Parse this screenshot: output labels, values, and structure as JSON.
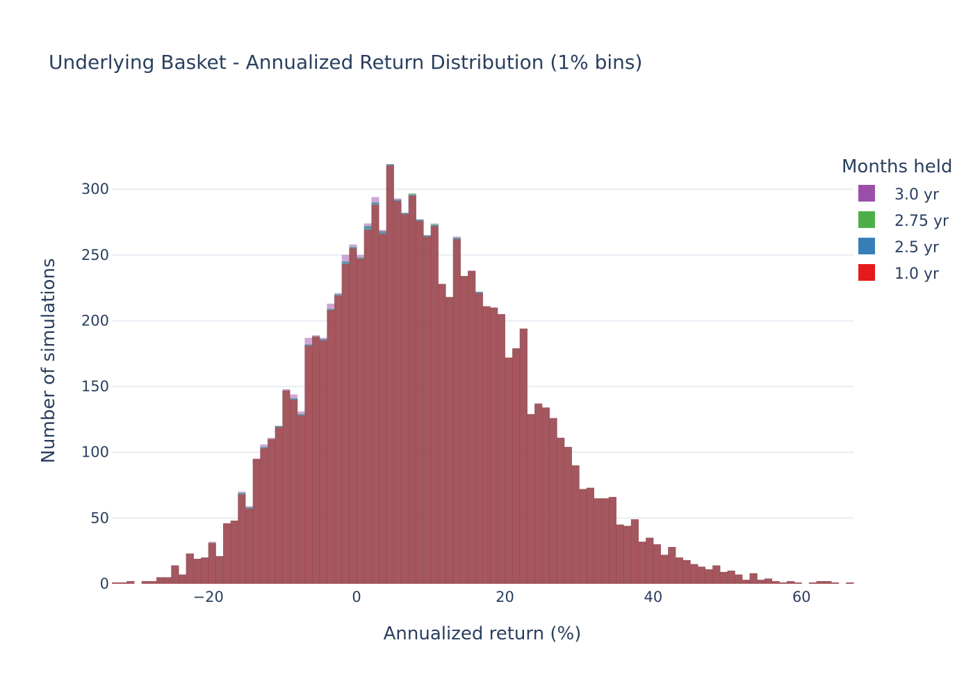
{
  "chart_data": {
    "type": "bar",
    "barmode": "overlay",
    "title": "Underlying Basket - Annualized Return Distribution (1% bins)",
    "xlabel": "Annualized return (%)",
    "ylabel": "Number of simulations",
    "xlim": [
      -33,
      67
    ],
    "ylim": [
      0,
      335
    ],
    "xticks": [
      -20,
      0,
      20,
      40,
      60
    ],
    "yticks": [
      0,
      50,
      100,
      150,
      200,
      250,
      300
    ],
    "grid": true,
    "legend": {
      "title": "Months held",
      "position": "top-right"
    },
    "bin_width": 1,
    "x": [
      -33,
      -32,
      -31,
      -30,
      -29,
      -28,
      -27,
      -26,
      -25,
      -24,
      -23,
      -22,
      -21,
      -20,
      -19,
      -18,
      -17,
      -16,
      -15,
      -14,
      -13,
      -12,
      -11,
      -10,
      -9,
      -8,
      -7,
      -6,
      -5,
      -4,
      -3,
      -2,
      -1,
      0,
      1,
      2,
      3,
      4,
      5,
      6,
      7,
      8,
      9,
      10,
      11,
      12,
      13,
      14,
      15,
      16,
      17,
      18,
      19,
      20,
      21,
      22,
      23,
      24,
      25,
      26,
      27,
      28,
      29,
      30,
      31,
      32,
      33,
      34,
      35,
      36,
      37,
      38,
      39,
      40,
      41,
      42,
      43,
      44,
      45,
      46,
      47,
      48,
      49,
      50,
      51,
      52,
      53,
      54,
      55,
      56,
      57,
      58,
      59,
      60,
      61,
      62,
      63,
      64,
      65,
      66
    ],
    "series": [
      {
        "name": "3.0 yr",
        "color": "#9b4fa8",
        "values": [
          1,
          1,
          2,
          0,
          2,
          2,
          5,
          5,
          14,
          7,
          23,
          19,
          20,
          32,
          21,
          46,
          48,
          70,
          59,
          95,
          106,
          111,
          120,
          148,
          144,
          131,
          187,
          189,
          187,
          213,
          221,
          250,
          258,
          250,
          274,
          294,
          269,
          319,
          293,
          282,
          296,
          277,
          265,
          273,
          228,
          218,
          264,
          234,
          238,
          222,
          211,
          210,
          205,
          172,
          179,
          194,
          129,
          137,
          134,
          126,
          111,
          104,
          90,
          72,
          73,
          65,
          65,
          66,
          45,
          44,
          49,
          32,
          35,
          30,
          22,
          28,
          20,
          18,
          15,
          13,
          11,
          14,
          9,
          10,
          7,
          3,
          8,
          3,
          4,
          2,
          1,
          2,
          1,
          0,
          1,
          2,
          2,
          1,
          0,
          1
        ]
      },
      {
        "name": "2.75 yr",
        "color": "#4daf4a",
        "values": [
          1,
          1,
          2,
          0,
          2,
          2,
          5,
          5,
          14,
          7,
          23,
          19,
          20,
          31,
          21,
          46,
          48,
          69,
          58,
          95,
          104,
          110,
          120,
          147,
          141,
          129,
          182,
          188,
          186,
          209,
          220,
          245,
          256,
          248,
          272,
          290,
          268,
          319,
          292,
          282,
          297,
          277,
          265,
          274,
          228,
          218,
          263,
          234,
          238,
          222,
          211,
          210,
          205,
          172,
          179,
          194,
          129,
          137,
          134,
          126,
          111,
          104,
          90,
          72,
          73,
          65,
          65,
          66,
          45,
          44,
          49,
          32,
          35,
          30,
          22,
          28,
          20,
          18,
          15,
          13,
          11,
          14,
          9,
          10,
          7,
          3,
          8,
          3,
          4,
          2,
          1,
          2,
          1,
          0,
          1,
          2,
          2,
          1,
          0,
          1
        ]
      },
      {
        "name": "2.5 yr",
        "color": "#377eb8",
        "values": [
          1,
          1,
          2,
          0,
          2,
          2,
          5,
          5,
          14,
          7,
          23,
          19,
          20,
          31,
          21,
          46,
          48,
          69,
          58,
          95,
          104,
          110,
          120,
          147,
          141,
          129,
          182,
          188,
          186,
          209,
          220,
          245,
          256,
          248,
          272,
          290,
          268,
          319,
          292,
          282,
          296,
          277,
          265,
          273,
          228,
          218,
          263,
          234,
          238,
          222,
          211,
          210,
          205,
          172,
          179,
          194,
          129,
          137,
          134,
          126,
          111,
          104,
          90,
          72,
          73,
          65,
          65,
          66,
          45,
          44,
          49,
          32,
          35,
          30,
          22,
          28,
          20,
          18,
          15,
          13,
          11,
          14,
          9,
          10,
          7,
          3,
          8,
          3,
          4,
          2,
          1,
          2,
          1,
          0,
          1,
          2,
          2,
          1,
          0,
          1
        ]
      },
      {
        "name": "1.0 yr",
        "color": "#e41a1c",
        "values": [
          1,
          1,
          2,
          0,
          2,
          2,
          5,
          5,
          14,
          7,
          23,
          19,
          20,
          31,
          21,
          46,
          48,
          68,
          57,
          95,
          103,
          110,
          119,
          147,
          140,
          128,
          181,
          188,
          185,
          208,
          219,
          243,
          255,
          247,
          269,
          288,
          266,
          318,
          291,
          281,
          295,
          276,
          264,
          272,
          228,
          218,
          262,
          234,
          238,
          221,
          211,
          210,
          205,
          172,
          179,
          194,
          129,
          137,
          134,
          126,
          111,
          104,
          90,
          72,
          73,
          65,
          65,
          66,
          45,
          44,
          49,
          32,
          35,
          30,
          22,
          28,
          20,
          18,
          15,
          13,
          11,
          14,
          9,
          10,
          7,
          3,
          8,
          3,
          4,
          2,
          1,
          2,
          1,
          0,
          1,
          2,
          2,
          1,
          0,
          1
        ]
      }
    ]
  }
}
